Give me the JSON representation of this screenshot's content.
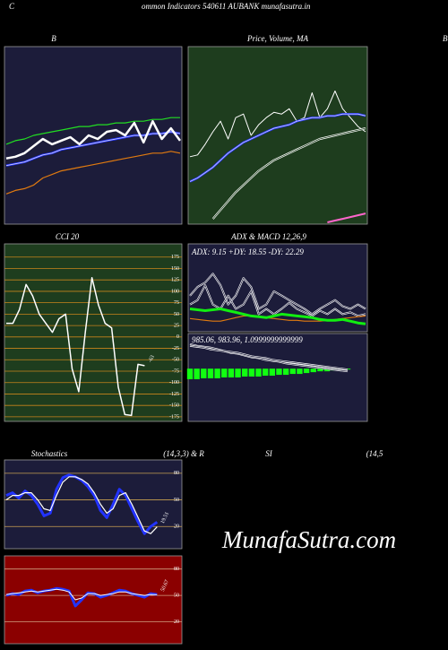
{
  "header": "ommon  Indicators 540611 AUBANK munafasutra.in",
  "edge_labels": [
    "C",
    "B",
    "C"
  ],
  "watermark": "MunafaSutra.com",
  "chart_data": [
    {
      "type": "line",
      "title": "B",
      "ylim": [
        0,
        100
      ],
      "series": [
        {
          "color": "#22dd22",
          "width": 1.2,
          "values": [
            45,
            47,
            48,
            50,
            51,
            52,
            53,
            54,
            55,
            55,
            56,
            56,
            57,
            57,
            58,
            58,
            59,
            59,
            60,
            60
          ]
        },
        {
          "color": "#2233ff",
          "width": 2.5,
          "double": true,
          "values": [
            33,
            34,
            35,
            37,
            39,
            40,
            42,
            43,
            44,
            45,
            46,
            47,
            48,
            49,
            50,
            50,
            51,
            51,
            52,
            51
          ]
        },
        {
          "color": "#e07a10",
          "width": 1.2,
          "values": [
            17,
            19,
            20,
            22,
            26,
            28,
            30,
            31,
            32,
            33,
            34,
            35,
            36,
            37,
            38,
            39,
            40,
            40,
            41,
            40
          ]
        },
        {
          "color": "#ffffff",
          "width": 2.5,
          "values": [
            37,
            38,
            40,
            44,
            48,
            45,
            47,
            49,
            45,
            50,
            48,
            52,
            53,
            50,
            57,
            46,
            58,
            48,
            54,
            47
          ]
        }
      ]
    },
    {
      "type": "line",
      "title": "Price, Volume, MA",
      "ylim": [
        0,
        100
      ],
      "series": [
        {
          "color": "#ffffff",
          "width": 1,
          "values": [
            38,
            39,
            45,
            52,
            58,
            48,
            60,
            62,
            50,
            56,
            60,
            63,
            62,
            65,
            58,
            60,
            74,
            60,
            65,
            75,
            65,
            60,
            55,
            52
          ]
        },
        {
          "color": "#2233ff",
          "width": 2.5,
          "double": true,
          "values": [
            24,
            26,
            29,
            32,
            36,
            40,
            43,
            46,
            48,
            50,
            52,
            54,
            55,
            56,
            58,
            59,
            60,
            60,
            61,
            61,
            62,
            62,
            62,
            61
          ]
        },
        {
          "color": "#ffffff",
          "width": 2.2,
          "double": true,
          "values": [
            null,
            null,
            null,
            3,
            8,
            13,
            18,
            22,
            26,
            30,
            33,
            36,
            38,
            40,
            42,
            44,
            46,
            48,
            49,
            50,
            51,
            52,
            53,
            54
          ]
        },
        {
          "color": "#ff66cc",
          "width": 2,
          "values": [
            null,
            null,
            null,
            null,
            null,
            null,
            null,
            null,
            null,
            null,
            null,
            null,
            null,
            null,
            null,
            null,
            null,
            null,
            1,
            2,
            3,
            4,
            5,
            6
          ]
        }
      ]
    },
    {
      "type": "line",
      "title": "CCI 20",
      "ylim": [
        -185,
        204
      ],
      "yticks": [
        175,
        150,
        125,
        100,
        75,
        50,
        25,
        0,
        -25,
        -50,
        -75,
        -100,
        -125,
        -150,
        -175
      ],
      "gridcolor": "#c8841c",
      "series": [
        {
          "color": "#ffffff",
          "width": 1.5,
          "values": [
            30,
            30,
            60,
            115,
            90,
            50,
            30,
            10,
            40,
            50,
            -70,
            -120,
            10,
            130,
            70,
            30,
            20,
            -110,
            -170,
            -172,
            -60,
            -63
          ]
        }
      ],
      "current": -63
    },
    {
      "type": "line",
      "title": "ADX  & MACD 12,26,9",
      "annotation": "ADX: 9.15 +DY: 18.55 -DY: 22.29",
      "ylim": [
        0,
        100
      ],
      "series": [
        {
          "color": "#ffffff",
          "width": 2,
          "double": true,
          "values": [
            41,
            51,
            56,
            66,
            53,
            31,
            41,
            61,
            51,
            26,
            31,
            46,
            41,
            36,
            31,
            26,
            20,
            26,
            31,
            36,
            29,
            26,
            31,
            26
          ]
        },
        {
          "color": "#ffffff",
          "width": 2,
          "double": true,
          "values": [
            31,
            36,
            53,
            31,
            26,
            41,
            26,
            31,
            46,
            20,
            26,
            20,
            26,
            33,
            26,
            22,
            18,
            24,
            20,
            26,
            20,
            22,
            18,
            20
          ]
        },
        {
          "color": "#e07a10",
          "width": 1.2,
          "values": [
            15,
            14,
            13,
            12,
            12,
            14,
            16,
            18,
            18,
            17,
            16,
            15,
            14,
            13,
            13,
            12,
            12,
            12,
            13,
            14,
            15,
            16,
            17,
            18
          ]
        },
        {
          "color": "#11ee11",
          "width": 3,
          "values": [
            26,
            25,
            24,
            25,
            26,
            24,
            22,
            20,
            18,
            17,
            16,
            18,
            20,
            19,
            18,
            17,
            16,
            14,
            13,
            13,
            14,
            12,
            10,
            9
          ]
        }
      ]
    },
    {
      "type": "line",
      "annotation": "985.06, 983.96, 1.0999999999999",
      "ylim": [
        -60,
        40
      ],
      "bars": {
        "color": "#11ff11",
        "values": [
          -12,
          -12,
          -11,
          -11,
          -11,
          -10,
          -10,
          -10,
          -9,
          -9,
          -9,
          -8,
          -8,
          -7,
          -7,
          -6,
          -6,
          -5,
          -4,
          -3,
          -3,
          -2,
          -1,
          -1
        ]
      },
      "series": [
        {
          "color": "#ffffff",
          "width": 2,
          "double": true,
          "values": [
            28,
            26,
            25,
            24,
            22,
            20,
            18,
            17,
            15,
            13,
            12,
            10,
            9,
            8,
            6,
            5,
            4,
            3,
            2,
            1,
            0,
            -1,
            -2,
            -3
          ]
        },
        {
          "color": "#ffffff",
          "width": 2,
          "double": true,
          "values": [
            26,
            25,
            24,
            22,
            21,
            20,
            19,
            18,
            16,
            14,
            13,
            12,
            10,
            9,
            8,
            7,
            6,
            5,
            4,
            3,
            2,
            1,
            0,
            -1
          ]
        }
      ]
    },
    {
      "type": "line",
      "title": "Stochastics",
      "subtitle": "(14,3,3) & R",
      "ylim": [
        -5,
        95
      ],
      "yticks": [
        80,
        50,
        20
      ],
      "gridcolor": "#c8a050",
      "series": [
        {
          "color": "#2233ff",
          "width": 3,
          "values": [
            55,
            58,
            52,
            60,
            55,
            45,
            32,
            35,
            62,
            75,
            78,
            76,
            72,
            65,
            55,
            38,
            30,
            45,
            62,
            55,
            40,
            25,
            12,
            20,
            25
          ]
        },
        {
          "color": "#ffffff",
          "width": 1.2,
          "values": [
            50,
            55,
            55,
            58,
            58,
            50,
            40,
            38,
            55,
            70,
            76,
            76,
            73,
            68,
            58,
            45,
            35,
            40,
            55,
            58,
            45,
            30,
            15,
            12,
            19.51
          ]
        }
      ],
      "current": 19.51
    },
    {
      "type": "line",
      "title": "SI",
      "subtitle": "(14,5",
      "ylim": [
        -5,
        95
      ],
      "yticks": [
        80,
        50,
        20
      ],
      "gridcolor": "#d0a080",
      "series": [
        {
          "color": "#2233ff",
          "width": 3,
          "values": [
            50,
            52,
            51,
            55,
            56,
            53,
            55,
            56,
            58,
            57,
            55,
            38,
            45,
            53,
            52,
            48,
            50,
            53,
            56,
            55,
            52,
            50,
            48,
            52,
            51
          ]
        },
        {
          "color": "#ffffff",
          "width": 1,
          "values": [
            51,
            52,
            53,
            54,
            55,
            54,
            55,
            56,
            57,
            56,
            54,
            45,
            47,
            52,
            52,
            50,
            51,
            52,
            54,
            54,
            52,
            51,
            50,
            51,
            50.67
          ]
        }
      ],
      "current": 50.67
    }
  ]
}
